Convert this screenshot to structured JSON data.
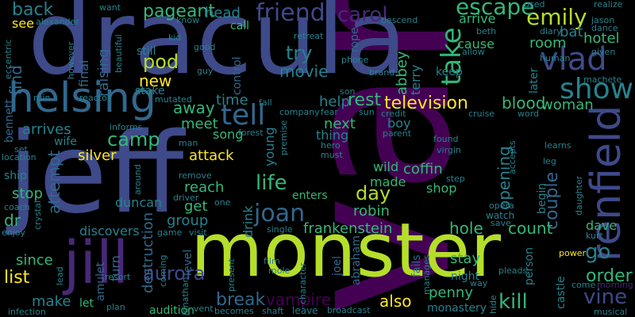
{
  "palette": {
    "purple": "#440154",
    "violet": "#482878",
    "indigo": "#3e4a89",
    "blue": "#31688e",
    "teal": "#26828e",
    "green": "#35b779",
    "lime": "#b5de2b",
    "yellow": "#fde725"
  },
  "words": {
    "van": "van",
    "jeff": "jeff",
    "dracula": "dracula",
    "monster": "monster",
    "helsing": "helsing",
    "jill": "jill",
    "renfield": "renfield",
    "vlad": "vlad",
    "tell": "tell",
    "show": "show",
    "television": "television",
    "friend": "friend",
    "carol": "carol",
    "emily": "emily",
    "escape": "escape",
    "pageant": "pageant",
    "back": "back",
    "head": "head",
    "take": "take",
    "try": "try",
    "movie": "movie",
    "new": "new",
    "pod": "pod",
    "list": "list",
    "joan": "joan",
    "life": "life",
    "day": "day",
    "camp": "camp",
    "aurora": "aurora",
    "break": "break",
    "vampire": "vampire",
    "also": "also",
    "kill": "kill",
    "vine": "vine",
    "go": "go",
    "order": "order",
    "frankenstein": "frankenstein",
    "robin": "robin",
    "rest": "rest",
    "help": "help",
    "blood": "blood",
    "woman": "woman",
    "hotel": "hotel",
    "bat": "bat",
    "couple": "couple",
    "opening": "opening",
    "coffin": "coffin",
    "next": "next",
    "thing": "thing",
    "attack": "attack",
    "silver": "silver",
    "reach": "reach",
    "duncan": "duncan",
    "get": "get",
    "group": "group",
    "discovers": "discovers",
    "destruction": "destruction",
    "since": "since",
    "make": "make",
    "attempt": "attempt",
    "find": "find",
    "arrives": "arrives",
    "stop": "stop",
    "wife": "wife",
    "dr": "dr",
    "meet": "meet",
    "away": "away",
    "time": "time",
    "song": "song",
    "young": "young",
    "drink": "drink",
    "made": "made",
    "wild": "wild",
    "shop": "shop",
    "hole": "hole",
    "count": "count",
    "dave": "dave",
    "stay": "stay",
    "penny": "penny",
    "arrive": "arrive",
    "room": "room",
    "cause": "cause",
    "abbey": "abbey",
    "terry": "terry",
    "boy": "boy",
    "see": "see",
    "call": "call",
    "raising": "raising",
    "still": "still",
    "final": "final",
    "control": "control",
    "rope": "rope",
    "keep": "keep",
    "stake": "stake",
    "ship": "ship",
    "bennett": "bennett",
    "amulet": "amulet",
    "turn": "turn",
    "level": "level",
    "audition": "audition",
    "let": "let",
    "enters": "enters",
    "abraham": "abraham",
    "joel": "joel",
    "fails": "fails",
    "castle": "castle",
    "later": "later",
    "begin": "begin",
    "person": "person",
    "night": "night",
    "monastery": "monastery",
    "watch": "watch",
    "want": "want",
    "know": "know",
    "kid": "kid",
    "good": "good",
    "phone": "phone",
    "son": "son",
    "used": "used",
    "realize": "realize",
    "diary": "diary",
    "jason": "jason",
    "dance": "dance",
    "beth": "beth",
    "allow": "allow",
    "given": "given",
    "human": "human",
    "machete": "machete",
    "alexander": "alexander",
    "eccentric": "eccentric",
    "however": "however",
    "beautiful": "beautiful",
    "ruin": "ruin",
    "reactor": "reactor",
    "guy": "guy",
    "mutated": "mutated",
    "retreat": "retreat",
    "descend": "descend",
    "brand": "brand",
    "informs": "informs",
    "set": "set",
    "location": "location",
    "coach": "coach",
    "enjoy": "enjoy",
    "crystal": "crystal",
    "infection": "infection",
    "man": "man",
    "remove": "remove",
    "driver": "driver",
    "around": "around",
    "game": "game",
    "visit": "visit",
    "one": "one",
    "resort": "resort",
    "plan": "plan",
    "jonathan": "jonathan",
    "vent": "vent",
    "becomes": "becomes",
    "shaft": "shaft",
    "lead": "lead",
    "coming": "coming",
    "present": "present",
    "single": "single",
    "film": "film",
    "mole": "mole",
    "character": "character",
    "premise": "premise",
    "fall": "fall",
    "company": "company",
    "fear": "fear",
    "forest": "forest",
    "hero": "hero",
    "must": "must",
    "parent": "parent",
    "found": "found",
    "virgin": "virgin",
    "step": "step",
    "sun": "sun",
    "credit": "credit",
    "cruise": "cruise",
    "word": "word",
    "learns": "learns",
    "leg": "leg",
    "daughter": "daughter",
    "opera": "opera",
    "save": "save",
    "kurt": "kurt",
    "power": "power",
    "way": "way",
    "pleads": "pleads",
    "come": "come",
    "morning": "morning",
    "musical": "musical",
    "leave": "leave",
    "broadcast": "broadcast",
    "manages": "manages",
    "accepts": "accepts",
    "hide": "hide"
  }
}
